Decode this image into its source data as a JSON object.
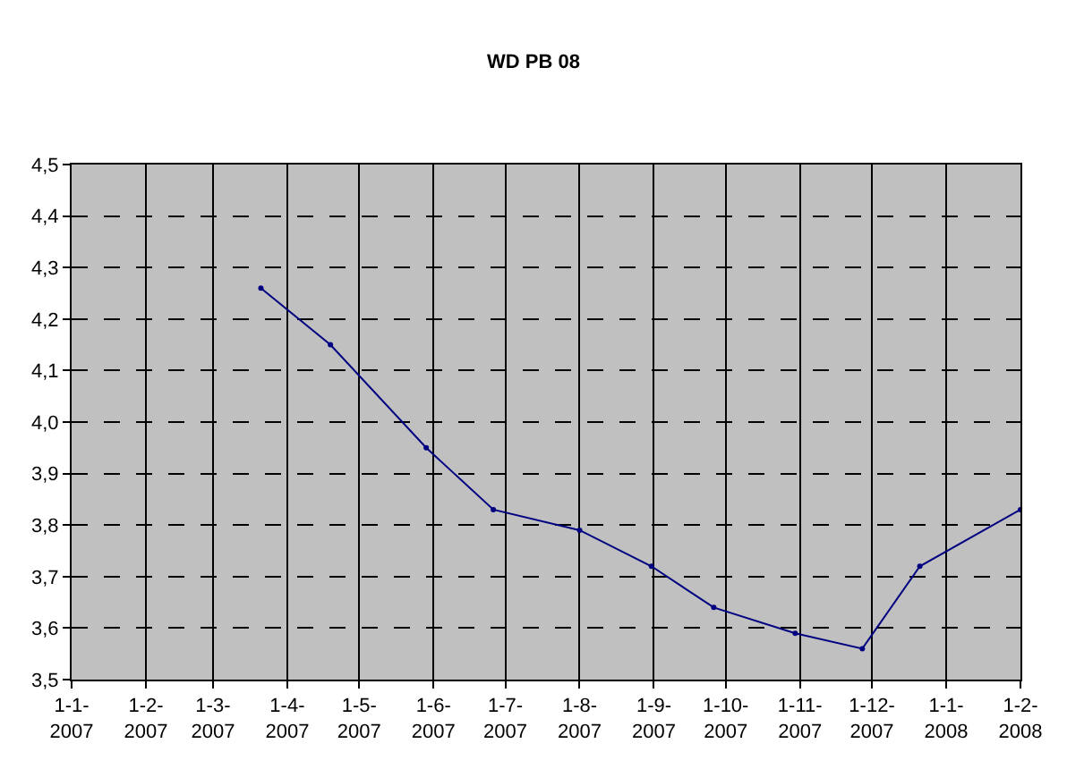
{
  "chart_data": {
    "type": "line",
    "title": "WD PB 08",
    "x": [
      "2007-03-21",
      "2007-04-19",
      "2007-05-29",
      "2007-06-26",
      "2007-08-01",
      "2007-08-31",
      "2007-09-26",
      "2007-10-30",
      "2007-11-27",
      "2007-12-21",
      "2008-02-01"
    ],
    "series": [
      {
        "color": "#000080",
        "values": [
          4.26,
          4.15,
          3.95,
          3.83,
          3.79,
          3.72,
          3.64,
          3.59,
          3.56,
          3.72,
          3.83
        ]
      }
    ],
    "xlim": [
      "2007-01-01",
      "2008-02-01"
    ],
    "xticks": [
      {
        "value": "2007-01-01",
        "label": "1-1-\n2007"
      },
      {
        "value": "2007-02-01",
        "label": "1-2-\n2007"
      },
      {
        "value": "2007-03-01",
        "label": "1-3-\n2007"
      },
      {
        "value": "2007-04-01",
        "label": "1-4-\n2007"
      },
      {
        "value": "2007-05-01",
        "label": "1-5-\n2007"
      },
      {
        "value": "2007-06-01",
        "label": "1-6-\n2007"
      },
      {
        "value": "2007-07-01",
        "label": "1-7-\n2007"
      },
      {
        "value": "2007-08-01",
        "label": "1-8-\n2007"
      },
      {
        "value": "2007-09-01",
        "label": "1-9-\n2007"
      },
      {
        "value": "2007-10-01",
        "label": "1-10-\n2007"
      },
      {
        "value": "2007-11-01",
        "label": "1-11-\n2007"
      },
      {
        "value": "2007-12-01",
        "label": "1-12-\n2007"
      },
      {
        "value": "2008-01-01",
        "label": "1-1-\n2008"
      },
      {
        "value": "2008-02-01",
        "label": "1-2-\n2008"
      }
    ],
    "ylim": [
      3.5,
      4.5
    ],
    "yticks": [
      {
        "value": 3.5,
        "label": "3,5"
      },
      {
        "value": 3.6,
        "label": "3,6"
      },
      {
        "value": 3.7,
        "label": "3,7"
      },
      {
        "value": 3.8,
        "label": "3,8"
      },
      {
        "value": 3.9,
        "label": "3,9"
      },
      {
        "value": 4.0,
        "label": "4,0"
      },
      {
        "value": 4.1,
        "label": "4,1"
      },
      {
        "value": 4.2,
        "label": "4,2"
      },
      {
        "value": 4.3,
        "label": "4,3"
      },
      {
        "value": 4.4,
        "label": "4,4"
      },
      {
        "value": 4.5,
        "label": "4,5"
      }
    ],
    "grid": true,
    "marker": "circle",
    "line_style": "solid"
  }
}
